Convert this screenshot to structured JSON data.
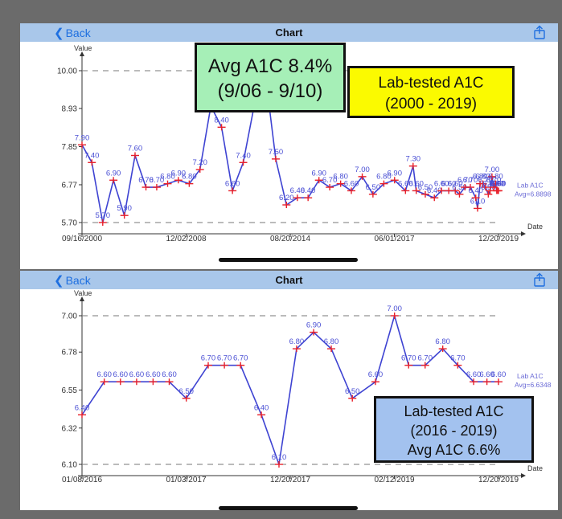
{
  "nav": {
    "back_label": "Back",
    "title": "Chart"
  },
  "annotations": {
    "top_green": [
      "Avg A1C 8.4%",
      "(9/06 - 9/10)"
    ],
    "top_yellow": [
      "Lab-tested A1C",
      "(2000 - 2019)"
    ],
    "bottom_blue": [
      "Lab-tested A1C",
      "(2016 - 2019)",
      "Avg A1C 6.6%"
    ]
  },
  "chart_data": [
    {
      "type": "line",
      "ylabel": "Value",
      "xlabel": "Date",
      "ylim": [
        5.7,
        10.0
      ],
      "ref_lines": [
        10.0,
        5.7
      ],
      "yticks": [
        "10.00",
        "8.93",
        "7.85",
        "6.77",
        "5.70"
      ],
      "xticks": [
        "09/16/2000",
        "12/02/2008",
        "08/20/2014",
        "06/01/2017",
        "12/20/2019"
      ],
      "xlim": [
        "2000-09-16",
        "2019-12-20"
      ],
      "series": [
        {
          "name": "Lab A1C",
          "legend_sub": "Avg=6.8898",
          "color": "#3e43d2",
          "marker_color": "#e8202a",
          "points": [
            {
              "x": "2000-09-16",
              "y": 7.9,
              "l": "7.90"
            },
            {
              "x": "2001-03-01",
              "y": 7.4,
              "l": "7.40"
            },
            {
              "x": "2001-09-01",
              "y": 5.7,
              "l": "5.70"
            },
            {
              "x": "2002-03-01",
              "y": 6.9,
              "l": "6.90"
            },
            {
              "x": "2002-09-01",
              "y": 5.9,
              "l": "5.90"
            },
            {
              "x": "2003-03-01",
              "y": 7.6,
              "l": "7.60"
            },
            {
              "x": "2003-09-01",
              "y": 6.7,
              "l": "6.70"
            },
            {
              "x": "2004-03-01",
              "y": 6.7,
              "l": "6.70"
            },
            {
              "x": "2004-09-01",
              "y": 6.8,
              "l": "6.80"
            },
            {
              "x": "2005-03-01",
              "y": 6.9,
              "l": "6.90"
            },
            {
              "x": "2005-09-01",
              "y": 6.8,
              "l": "6.80"
            },
            {
              "x": "2006-03-01",
              "y": 7.2,
              "l": "7.20"
            },
            {
              "x": "2006-09-01",
              "y": 9.0,
              "l": "9.00"
            },
            {
              "x": "2007-03-01",
              "y": 8.4,
              "l": "8.40"
            },
            {
              "x": "2007-09-01",
              "y": 6.6,
              "l": "6.60"
            },
            {
              "x": "2008-03-01",
              "y": 7.4,
              "l": "7.40"
            },
            {
              "x": "2008-09-01",
              "y": 9.0,
              "l": "9.00"
            },
            {
              "x": "2009-03-01",
              "y": 10.0,
              "l": "10.00"
            },
            {
              "x": "2009-09-01",
              "y": 7.5,
              "l": "7.50"
            },
            {
              "x": "2010-03-01",
              "y": 6.2,
              "l": "6.20"
            },
            {
              "x": "2010-09-01",
              "y": 6.4,
              "l": "6.40"
            },
            {
              "x": "2011-03-01",
              "y": 6.4,
              "l": "6.40"
            },
            {
              "x": "2011-09-01",
              "y": 6.9,
              "l": "6.90"
            },
            {
              "x": "2012-03-01",
              "y": 6.7,
              "l": "6.70"
            },
            {
              "x": "2012-09-01",
              "y": 6.8,
              "l": "6.80"
            },
            {
              "x": "2013-03-01",
              "y": 6.6,
              "l": "6.60"
            },
            {
              "x": "2013-09-01",
              "y": 7.0,
              "l": "7.00"
            },
            {
              "x": "2014-03-01",
              "y": 6.5,
              "l": "6.50"
            },
            {
              "x": "2014-09-01",
              "y": 6.8,
              "l": "6.80"
            },
            {
              "x": "2015-03-01",
              "y": 6.9,
              "l": "6.90"
            },
            {
              "x": "2015-09-01",
              "y": 6.6,
              "l": "6.60"
            },
            {
              "x": "2016-01-08",
              "y": 7.3,
              "l": "7.30"
            },
            {
              "x": "2016-03-01",
              "y": 6.6,
              "l": "6.60"
            },
            {
              "x": "2016-08-01",
              "y": 6.5,
              "l": "6.50"
            },
            {
              "x": "2017-01-01",
              "y": 6.4,
              "l": "6.40"
            },
            {
              "x": "2017-05-01",
              "y": 6.6,
              "l": "6.60"
            },
            {
              "x": "2017-09-01",
              "y": 6.6,
              "l": "6.60"
            },
            {
              "x": "2017-12-20",
              "y": 6.6,
              "l": "6.60"
            },
            {
              "x": "2018-03-01",
              "y": 6.5,
              "l": "6.50"
            },
            {
              "x": "2018-06-01",
              "y": 6.7,
              "l": "6.70"
            },
            {
              "x": "2018-09-01",
              "y": 6.7,
              "l": "6.70"
            },
            {
              "x": "2018-12-01",
              "y": 6.4,
              "l": "6.40"
            },
            {
              "x": "2019-01-01",
              "y": 6.1,
              "l": "6.10"
            },
            {
              "x": "2019-02-12",
              "y": 6.8,
              "l": "6.80"
            },
            {
              "x": "2019-04-01",
              "y": 6.8,
              "l": "6.80"
            },
            {
              "x": "2019-05-15",
              "y": 6.7,
              "l": "6.70"
            },
            {
              "x": "2019-07-01",
              "y": 6.5,
              "l": "6.50"
            },
            {
              "x": "2019-08-01",
              "y": 6.6,
              "l": "6.60"
            },
            {
              "x": "2019-09-01",
              "y": 7.0,
              "l": "7.00"
            },
            {
              "x": "2019-10-01",
              "y": 6.7,
              "l": "6.70"
            },
            {
              "x": "2019-11-01",
              "y": 6.8,
              "l": "6.80"
            },
            {
              "x": "2019-11-20",
              "y": 6.6,
              "l": "6.60"
            },
            {
              "x": "2019-12-10",
              "y": 6.6,
              "l": "6.60"
            },
            {
              "x": "2019-12-20",
              "y": 6.6,
              "l": "6.60"
            }
          ]
        }
      ]
    },
    {
      "type": "line",
      "ylabel": "Value",
      "xlabel": "Date",
      "ylim": [
        6.1,
        7.0
      ],
      "ref_lines": [
        7.0,
        6.1
      ],
      "yticks": [
        "7.00",
        "6.78",
        "6.55",
        "6.32",
        "6.10"
      ],
      "xticks": [
        "01/08/2016",
        "01/03/2017",
        "12/20/2017",
        "02/12/2019",
        "12/20/2019"
      ],
      "xlim": [
        "2016-01-08",
        "2019-12-20"
      ],
      "series": [
        {
          "name": "Lab A1C",
          "legend_sub": "Avg=6.6348",
          "color": "#3e43d2",
          "marker_color": "#e8202a",
          "points": [
            {
              "x": "2016-01-08",
              "y": 6.4,
              "l": "6.40"
            },
            {
              "x": "2016-03-25",
              "y": 6.6,
              "l": "6.60"
            },
            {
              "x": "2016-05-20",
              "y": 6.6,
              "l": "6.60"
            },
            {
              "x": "2016-07-15",
              "y": 6.6,
              "l": "6.60"
            },
            {
              "x": "2016-09-10",
              "y": 6.6,
              "l": "6.60"
            },
            {
              "x": "2016-11-05",
              "y": 6.6,
              "l": "6.60"
            },
            {
              "x": "2017-01-03",
              "y": 6.5,
              "l": "6.50"
            },
            {
              "x": "2017-03-20",
              "y": 6.7,
              "l": "6.70"
            },
            {
              "x": "2017-05-15",
              "y": 6.7,
              "l": "6.70"
            },
            {
              "x": "2017-07-10",
              "y": 6.7,
              "l": "6.70"
            },
            {
              "x": "2017-09-20",
              "y": 6.4,
              "l": "6.40"
            },
            {
              "x": "2017-11-20",
              "y": 6.1,
              "l": "6.10"
            },
            {
              "x": "2018-01-20",
              "y": 6.8,
              "l": "6.80"
            },
            {
              "x": "2018-03-20",
              "y": 6.9,
              "l": "6.90"
            },
            {
              "x": "2018-05-20",
              "y": 6.8,
              "l": "6.80"
            },
            {
              "x": "2018-08-01",
              "y": 6.5,
              "l": "6.50"
            },
            {
              "x": "2018-10-20",
              "y": 6.6,
              "l": "6.60"
            },
            {
              "x": "2018-12-25",
              "y": 7.0,
              "l": "7.00"
            },
            {
              "x": "2019-02-12",
              "y": 6.7,
              "l": "6.70"
            },
            {
              "x": "2019-04-10",
              "y": 6.7,
              "l": "6.70"
            },
            {
              "x": "2019-06-10",
              "y": 6.8,
              "l": "6.80"
            },
            {
              "x": "2019-08-01",
              "y": 6.7,
              "l": "6.70"
            },
            {
              "x": "2019-09-25",
              "y": 6.6,
              "l": "6.60"
            },
            {
              "x": "2019-11-10",
              "y": 6.6,
              "l": "6.60"
            },
            {
              "x": "2019-12-20",
              "y": 6.6,
              "l": "6.60"
            }
          ]
        }
      ]
    }
  ]
}
